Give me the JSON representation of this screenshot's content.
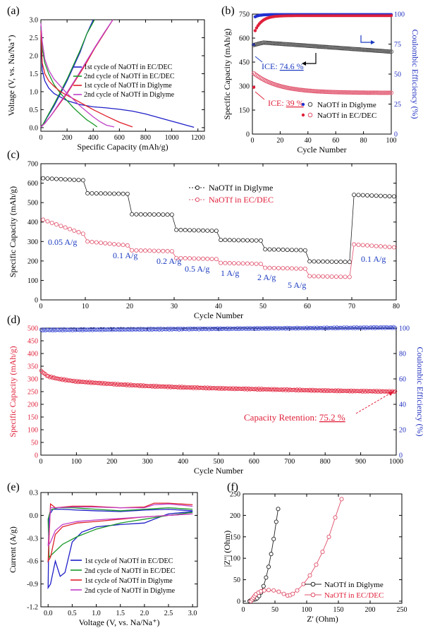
{
  "panels": [
    {
      "label": "(a)",
      "type": "line",
      "xlabel": "Specific Capacity (mAh/g)",
      "ylabel": "Voltage (V, vs. Na/Na⁺)",
      "xlim": [
        0,
        1250
      ],
      "ylim": [
        -0.1,
        3.0
      ],
      "xticks": [
        0,
        200,
        400,
        600,
        800,
        1000,
        1200
      ],
      "yticks": [
        0.0,
        0.5,
        1.0,
        1.5,
        2.0,
        2.5,
        3.0
      ],
      "ytick_labels": [
        "0.0",
        "0.5",
        "1.0",
        "1.5",
        "2.0",
        "2.5",
        "3.0"
      ],
      "legend": "center-right",
      "series": [
        {
          "name": "1st cycle of NaOTf in EC/DEC",
          "color": "#1f1fc8",
          "x": [
            0,
            10,
            30,
            60,
            100,
            150,
            200,
            300,
            400,
            500,
            600,
            700,
            800,
            900,
            1000,
            1100,
            1170
          ],
          "y": [
            2.8,
            1.6,
            1.3,
            1.1,
            0.95,
            0.85,
            0.75,
            0.64,
            0.58,
            0.55,
            0.51,
            0.46,
            0.38,
            0.28,
            0.18,
            0.08,
            0.01
          ],
          "cx": [
            0,
            20,
            50,
            100,
            150,
            200,
            250,
            300,
            350,
            400
          ],
          "cy": [
            0.01,
            0.1,
            0.3,
            0.6,
            0.95,
            1.3,
            1.7,
            2.1,
            2.6,
            3.0
          ]
        },
        {
          "name": "2nd cycle of NaOTf in EC/DEC",
          "color": "#1a9a2a",
          "x": [
            0,
            10,
            30,
            60,
            100,
            150,
            200,
            250,
            300,
            350,
            400,
            430
          ],
          "y": [
            2.8,
            2.2,
            1.8,
            1.5,
            1.2,
            0.95,
            0.75,
            0.55,
            0.38,
            0.22,
            0.1,
            0.02
          ],
          "cx": [
            0,
            20,
            50,
            100,
            150,
            200,
            250,
            300,
            350,
            410
          ],
          "cy": [
            0.02,
            0.12,
            0.32,
            0.65,
            1.0,
            1.35,
            1.75,
            2.15,
            2.6,
            3.0
          ]
        },
        {
          "name": "1st cycle of NaOTf in Diglyme",
          "color": "#e0202a",
          "x": [
            0,
            10,
            30,
            60,
            100,
            150,
            200,
            300,
            400,
            500,
            600,
            700
          ],
          "y": [
            2.7,
            1.8,
            1.5,
            1.3,
            1.15,
            1.0,
            0.9,
            0.7,
            0.5,
            0.32,
            0.15,
            0.02
          ],
          "cx": [
            0,
            30,
            80,
            130,
            200,
            270,
            340,
            410,
            480,
            550
          ],
          "cy": [
            0.02,
            0.12,
            0.35,
            0.6,
            0.95,
            1.35,
            1.75,
            2.2,
            2.6,
            3.0
          ]
        },
        {
          "name": "2nd cycle of NaOTf in Diglyme",
          "color": "#c040c8",
          "x": [
            0,
            10,
            30,
            60,
            100,
            150,
            200,
            250,
            300,
            350,
            400,
            450,
            500,
            560
          ],
          "y": [
            2.9,
            2.4,
            1.9,
            1.6,
            1.35,
            1.15,
            0.95,
            0.78,
            0.6,
            0.45,
            0.3,
            0.17,
            0.07,
            0.02
          ],
          "cx": [
            0,
            30,
            80,
            130,
            200,
            270,
            340,
            410,
            480,
            550
          ],
          "cy": [
            0.02,
            0.12,
            0.35,
            0.62,
            0.98,
            1.38,
            1.8,
            2.22,
            2.62,
            3.0
          ]
        }
      ]
    },
    {
      "label": "(b)",
      "type": "scatter",
      "xlabel": "Cycle Number",
      "ylabel": "Specific Capacity (mAh/g)",
      "ylabel_right": "Coulombic Efficiency (%)",
      "xlim": [
        0,
        100
      ],
      "ylim": [
        0,
        750
      ],
      "ylim_right": [
        0,
        100
      ],
      "xticks": [
        0,
        20,
        40,
        60,
        80,
        100
      ],
      "yticks": [
        0,
        150,
        300,
        450,
        600,
        750
      ],
      "yticks_right": [
        0,
        25,
        50,
        75,
        100
      ],
      "legend": "lower-right",
      "series": [
        {
          "name": "NaOTf in Diglyme",
          "color": "#444444",
          "marker": "open-circle",
          "start": 555,
          "peak": 572,
          "end": 515
        },
        {
          "name": "NaOTf in EC/DEC",
          "color": "#e0506a",
          "marker": "open-circle",
          "start": 380,
          "peak": 380,
          "end": 258
        },
        {
          "name": "CE Diglyme",
          "color": "#2030d0",
          "axis": "right",
          "start": 74.6,
          "end": 99.6
        },
        {
          "name": "CE EC/DEC",
          "color": "#e0203a",
          "axis": "right",
          "start": 39,
          "end": 98.8
        }
      ],
      "annotations": [
        {
          "prefix": "ICE: ",
          "value": "74.6 %",
          "color": "#1a3ac0"
        },
        {
          "prefix": "ICE: ",
          "value": "39 %",
          "color": "#e0203a"
        }
      ]
    },
    {
      "label": "(c)",
      "type": "line",
      "xlabel": "Cycle Number",
      "ylabel": "Specific Capacity (mAh/g)",
      "xlim": [
        0,
        80
      ],
      "ylim": [
        0,
        700
      ],
      "xticks": [
        0,
        10,
        20,
        30,
        40,
        50,
        60,
        70,
        80
      ],
      "yticks": [
        0,
        100,
        200,
        300,
        400,
        500,
        600,
        700
      ],
      "legend": "top-right",
      "series": [
        {
          "name": "NaOTf in Diglyme",
          "color": "#222222",
          "segments": [
            [
              625,
              615
            ],
            [
              548,
              545
            ],
            [
              440,
              438
            ],
            [
              360,
              355
            ],
            [
              308,
              305
            ],
            [
              260,
              255
            ],
            [
              198,
              195
            ],
            [
              540,
              532
            ]
          ]
        },
        {
          "name": "NaOTf in EC/DEC",
          "color": "#e0506a",
          "segments": [
            [
              412,
              340
            ],
            [
              300,
              280
            ],
            [
              255,
              250
            ],
            [
              215,
              210
            ],
            [
              190,
              185
            ],
            [
              165,
              160
            ],
            [
              122,
              118
            ],
            [
              285,
              270
            ]
          ]
        }
      ],
      "rate_labels": [
        "0.05 A/g",
        "0.1 A/g",
        "0.2 A/g",
        "0.5 A/g",
        "1 A/g",
        "2 A/g",
        "5 A/g",
        "0.1 A/g"
      ]
    },
    {
      "label": "(d)",
      "type": "scatter",
      "xlabel": "Cycle Number",
      "ylabel": "Specific Capacity (mAh/g)",
      "ylabel_right": "Coulombic Efficiency (%)",
      "xlim": [
        0,
        1000
      ],
      "ylim": [
        0,
        500
      ],
      "ylim_right": [
        0,
        100
      ],
      "xticks": [
        0,
        100,
        200,
        300,
        400,
        500,
        600,
        700,
        800,
        900,
        1000
      ],
      "yticks": [
        0,
        50,
        100,
        150,
        200,
        250,
        300,
        350,
        400,
        450,
        500
      ],
      "yticks_right": [
        0,
        20,
        40,
        60,
        80,
        100
      ],
      "capacity": {
        "x": [
          0,
          20,
          50,
          100,
          200,
          300,
          400,
          500,
          600,
          700,
          800,
          900,
          1000
        ],
        "y": [
          332,
          310,
          300,
          290,
          280,
          272,
          267,
          263,
          260,
          257,
          254,
          252,
          250
        ]
      },
      "ce": {
        "x": [
          0,
          1000
        ],
        "y": [
          98.5,
          100.5
        ]
      },
      "annotation": {
        "prefix": "Capacity Retention: ",
        "value": "75.2 %"
      }
    },
    {
      "label": "(e)",
      "type": "line",
      "xlabel": "Voltage (V, vs. Na/Na⁺)",
      "ylabel": "Current (A/g)",
      "xlim": [
        -0.15,
        3.1
      ],
      "ylim": [
        -1.2,
        0.3
      ],
      "xticks": [
        0.0,
        0.5,
        1.0,
        1.5,
        2.0,
        2.5,
        3.0
      ],
      "xtick_labels": [
        "0.0",
        "0.5",
        "1.0",
        "1.5",
        "2.0",
        "2.5",
        "3.0"
      ],
      "yticks": [
        -1.2,
        -0.9,
        -0.6,
        -0.3,
        0.0,
        0.3
      ],
      "ytick_labels": [
        "-1.2",
        "-0.9",
        "-0.6",
        "-0.3",
        "0.0",
        "0.3"
      ],
      "legend": "lower-right",
      "series": [
        {
          "name": "1st cycle of NaOTf in EC/DEC",
          "color": "#1f1fc8",
          "x": [
            3.0,
            2.5,
            2.2,
            2.0,
            1.5,
            1.0,
            0.7,
            0.5,
            0.35,
            0.25,
            0.15,
            0.05,
            0.0,
            0.02,
            0.1,
            0.3,
            0.6,
            1.0,
            1.5,
            2.0,
            2.5,
            3.0
          ],
          "y": [
            0.05,
            0.02,
            -0.05,
            -0.1,
            -0.12,
            -0.15,
            -0.22,
            -0.35,
            -0.75,
            -0.8,
            -0.6,
            -0.9,
            -0.95,
            0.0,
            0.08,
            0.08,
            0.07,
            0.06,
            0.05,
            0.07,
            0.08,
            0.06
          ]
        },
        {
          "name": "2nd cycle of NaOTf in EC/DEC",
          "color": "#1a9a2a",
          "x": [
            3.0,
            2.5,
            2.0,
            1.5,
            1.0,
            0.6,
            0.3,
            0.1,
            0.02,
            0.0,
            0.05,
            0.2,
            0.5,
            1.0,
            1.5,
            2.0,
            2.5,
            3.0
          ],
          "y": [
            0.04,
            0.0,
            -0.05,
            -0.1,
            -0.18,
            -0.28,
            -0.38,
            -0.5,
            -0.55,
            -0.05,
            0.07,
            0.1,
            0.1,
            0.08,
            0.06,
            0.08,
            0.1,
            0.08
          ]
        },
        {
          "name": "1st cycle of NaOTf in Diglyme",
          "color": "#e0202a",
          "x": [
            3.0,
            2.5,
            2.0,
            1.5,
            1.0,
            0.6,
            0.3,
            0.15,
            0.05,
            0.0,
            0.05,
            0.15,
            0.5,
            0.9,
            1.5,
            2.0,
            2.2,
            2.5,
            3.0
          ],
          "y": [
            0.02,
            0.0,
            -0.02,
            -0.05,
            -0.08,
            -0.1,
            -0.15,
            -0.25,
            -0.55,
            -0.6,
            0.15,
            0.1,
            0.12,
            0.12,
            0.1,
            0.11,
            0.16,
            0.16,
            0.14
          ]
        },
        {
          "name": "2nd cycle of NaOTf in Diglyme",
          "color": "#c040c8",
          "x": [
            3.0,
            2.5,
            2.0,
            1.5,
            1.0,
            0.6,
            0.3,
            0.15,
            0.05,
            0.0,
            0.05,
            0.15,
            0.5,
            0.9,
            1.5,
            2.0,
            2.2,
            2.5,
            3.0
          ],
          "y": [
            0.02,
            0.0,
            -0.02,
            -0.04,
            -0.06,
            -0.08,
            -0.12,
            -0.2,
            -0.35,
            -0.4,
            0.1,
            0.1,
            0.11,
            0.11,
            0.1,
            0.1,
            0.14,
            0.15,
            0.12
          ]
        }
      ]
    },
    {
      "label": "(f)",
      "type": "scatter",
      "xlabel": "Z' (Ohm)",
      "ylabel": "|Z''| (Ohm)",
      "xlim": [
        0,
        250
      ],
      "ylim": [
        -5,
        250
      ],
      "xticks": [
        0,
        50,
        100,
        150,
        200,
        250
      ],
      "yticks": [
        0,
        50,
        100,
        150,
        200,
        250
      ],
      "legend": "lower-right",
      "series": [
        {
          "name": "NaOTf in Diglyme",
          "color": "#222222",
          "x": [
            10,
            12,
            14,
            16,
            18,
            20,
            22,
            25,
            28,
            32,
            36,
            40,
            44,
            48,
            52,
            55
          ],
          "y": [
            0,
            2,
            3,
            4,
            4,
            5,
            7,
            12,
            20,
            35,
            55,
            80,
            110,
            145,
            185,
            215
          ]
        },
        {
          "name": "NaOTf in EC/DEC",
          "color": "#e0506a",
          "x": [
            12,
            14,
            16,
            18,
            20,
            24,
            28,
            33,
            40,
            48,
            56,
            64,
            70,
            74,
            78,
            85,
            95,
            105,
            115,
            125,
            135,
            145,
            155
          ],
          "y": [
            0,
            4,
            8,
            12,
            16,
            20,
            23,
            25,
            26,
            25,
            22,
            17,
            13,
            14,
            17,
            25,
            40,
            60,
            85,
            115,
            150,
            195,
            238
          ]
        }
      ]
    }
  ]
}
